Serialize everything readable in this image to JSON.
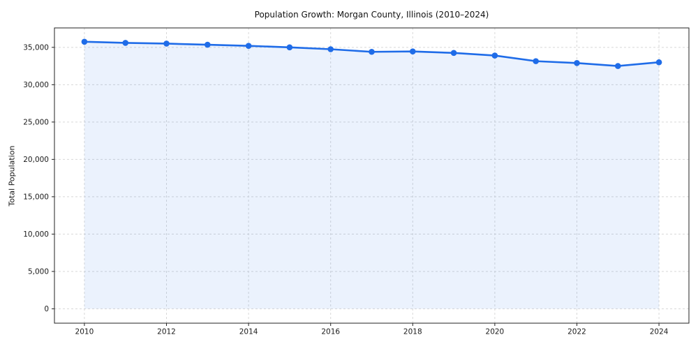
{
  "chart_data": {
    "type": "area",
    "title": "Population Growth: Morgan County, Illinois (2010–2024)",
    "xlabel": "",
    "ylabel": "Total Population",
    "x": [
      2010,
      2011,
      2012,
      2013,
      2014,
      2015,
      2016,
      2017,
      2018,
      2019,
      2020,
      2021,
      2022,
      2023,
      2024
    ],
    "values": [
      35750,
      35600,
      35500,
      35350,
      35200,
      35000,
      34750,
      34400,
      34450,
      34250,
      33900,
      33150,
      32900,
      32500,
      33000
    ],
    "series_name": "Total Population",
    "xticks": [
      2010,
      2012,
      2014,
      2016,
      2018,
      2020,
      2022,
      2024
    ],
    "yticks": [
      0,
      5000,
      10000,
      15000,
      20000,
      25000,
      30000,
      35000
    ],
    "xlim": [
      2009.27,
      2024.73
    ],
    "ylim": [
      -1925,
      37600
    ],
    "grid": true,
    "legend": false,
    "colors": {
      "line": "#1f6ce8",
      "marker": "#1f6ce8",
      "fill": "#1f6ce8",
      "fill_opacity": 0.09,
      "gridline": "#d8d8d8",
      "spine": "#222222",
      "tick_label": "#1a1a1a",
      "background": "#ffffff"
    },
    "marker_radius": 4.3,
    "line_width": 2.6
  }
}
